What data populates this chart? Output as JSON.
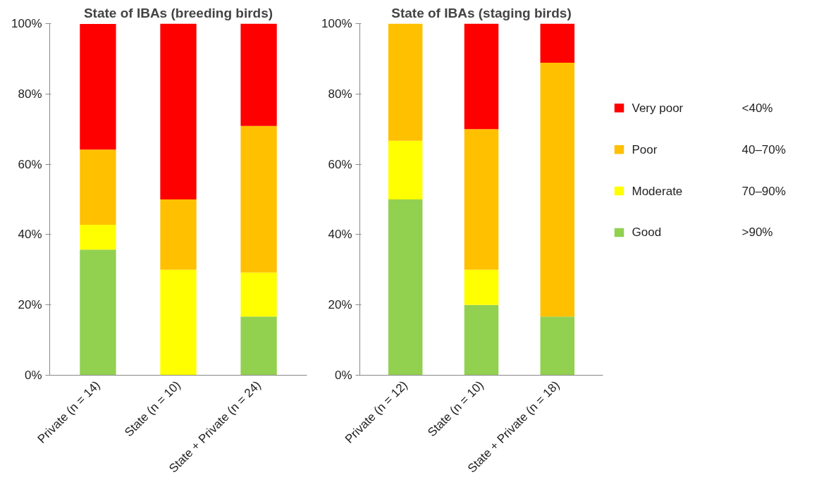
{
  "chart_data": [
    {
      "type": "bar",
      "title": "State of IBAs (breeding birds)",
      "stacked": true,
      "categories": [
        "Private (n = 14)",
        "State (n = 10)",
        "State + Private (n = 24)"
      ],
      "series": [
        {
          "color": "#92d050",
          "values": [
            35.7,
            0,
            16.7
          ]
        },
        {
          "color": "#ffff00",
          "values": [
            7.1,
            30,
            12.5
          ]
        },
        {
          "color": "#ffc000",
          "values": [
            21.4,
            20,
            41.7
          ]
        },
        {
          "color": "#ff0000",
          "values": [
            35.7,
            50,
            29.2
          ]
        }
      ],
      "ylim": [
        0,
        100
      ],
      "yticks": [
        {
          "value": 0,
          "label": "0%"
        },
        {
          "value": 20,
          "label": "20%"
        },
        {
          "value": 40,
          "label": "40%"
        },
        {
          "value": 60,
          "label": "60%"
        },
        {
          "value": 80,
          "label": "80%"
        },
        {
          "value": 100,
          "label": "100%"
        }
      ],
      "grid": false,
      "legend": false
    },
    {
      "type": "bar",
      "title": "State of IBAs (staging birds)",
      "stacked": true,
      "categories": [
        "Private (n = 12)",
        "State (n = 10)",
        "State + Private (n = 18)"
      ],
      "series": [
        {
          "name": "Good",
          "color": "#92d050",
          "values": [
            50,
            20,
            16.7
          ]
        },
        {
          "name": "Moderate",
          "color": "#ffff00",
          "values": [
            16.7,
            10,
            0
          ]
        },
        {
          "name": "Poor",
          "color": "#ffc000",
          "values": [
            33.3,
            40,
            72.2
          ]
        },
        {
          "name": "Very poor",
          "color": "#ff0000",
          "values": [
            0,
            30,
            11.1
          ]
        }
      ],
      "ylim": [
        0,
        100
      ],
      "yticks": [
        {
          "value": 0,
          "label": "0%"
        },
        {
          "value": 20,
          "label": "20%"
        },
        {
          "value": 40,
          "label": "40%"
        },
        {
          "value": 60,
          "label": "60%"
        },
        {
          "value": 80,
          "label": "80%"
        },
        {
          "value": 100,
          "label": "100%"
        }
      ],
      "grid": false,
      "legend": "right",
      "annotations": [
        "<40%",
        "40–70%",
        "70–90%",
        ">90%"
      ]
    }
  ]
}
